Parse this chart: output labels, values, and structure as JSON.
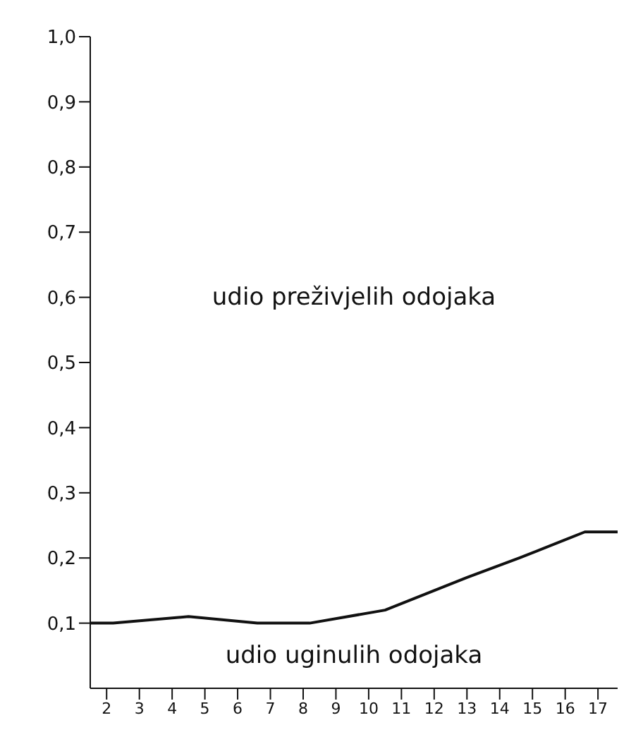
{
  "chart_data": {
    "type": "line",
    "x": [
      1.5,
      2.2,
      4.5,
      6.6,
      8.2,
      10.5,
      13,
      14.6,
      16.6,
      17.6
    ],
    "series": [
      {
        "color": "#111111",
        "values": [
          0.1,
          0.1,
          0.11,
          0.1,
          0.1,
          0.12,
          0.17,
          0.2,
          0.24,
          0.24
        ]
      }
    ],
    "xlim": [
      1.5,
      17.6
    ],
    "xticks": [
      2,
      3,
      4,
      5,
      6,
      7,
      8,
      9,
      10,
      11,
      12,
      13,
      14,
      15,
      16,
      17
    ],
    "ylim": [
      0,
      1
    ],
    "yticks": [
      {
        "value": 0.1,
        "label": "0,1"
      },
      {
        "value": 0.2,
        "label": "0,2"
      },
      {
        "value": 0.3,
        "label": "0,3"
      },
      {
        "value": 0.4,
        "label": "0,4"
      },
      {
        "value": 0.5,
        "label": "0,5"
      },
      {
        "value": 0.6,
        "label": "0,6"
      },
      {
        "value": 0.7,
        "label": "0,7"
      },
      {
        "value": 0.8,
        "label": "0,8"
      },
      {
        "value": 0.9,
        "label": "0,9"
      },
      {
        "value": 1,
        "label": "1,0"
      }
    ],
    "annotations": [
      "udio preživjelih odojaka",
      "udio uginulih odojaka"
    ],
    "grid": false,
    "legend": false,
    "marker": "none",
    "line_style": "solid"
  }
}
